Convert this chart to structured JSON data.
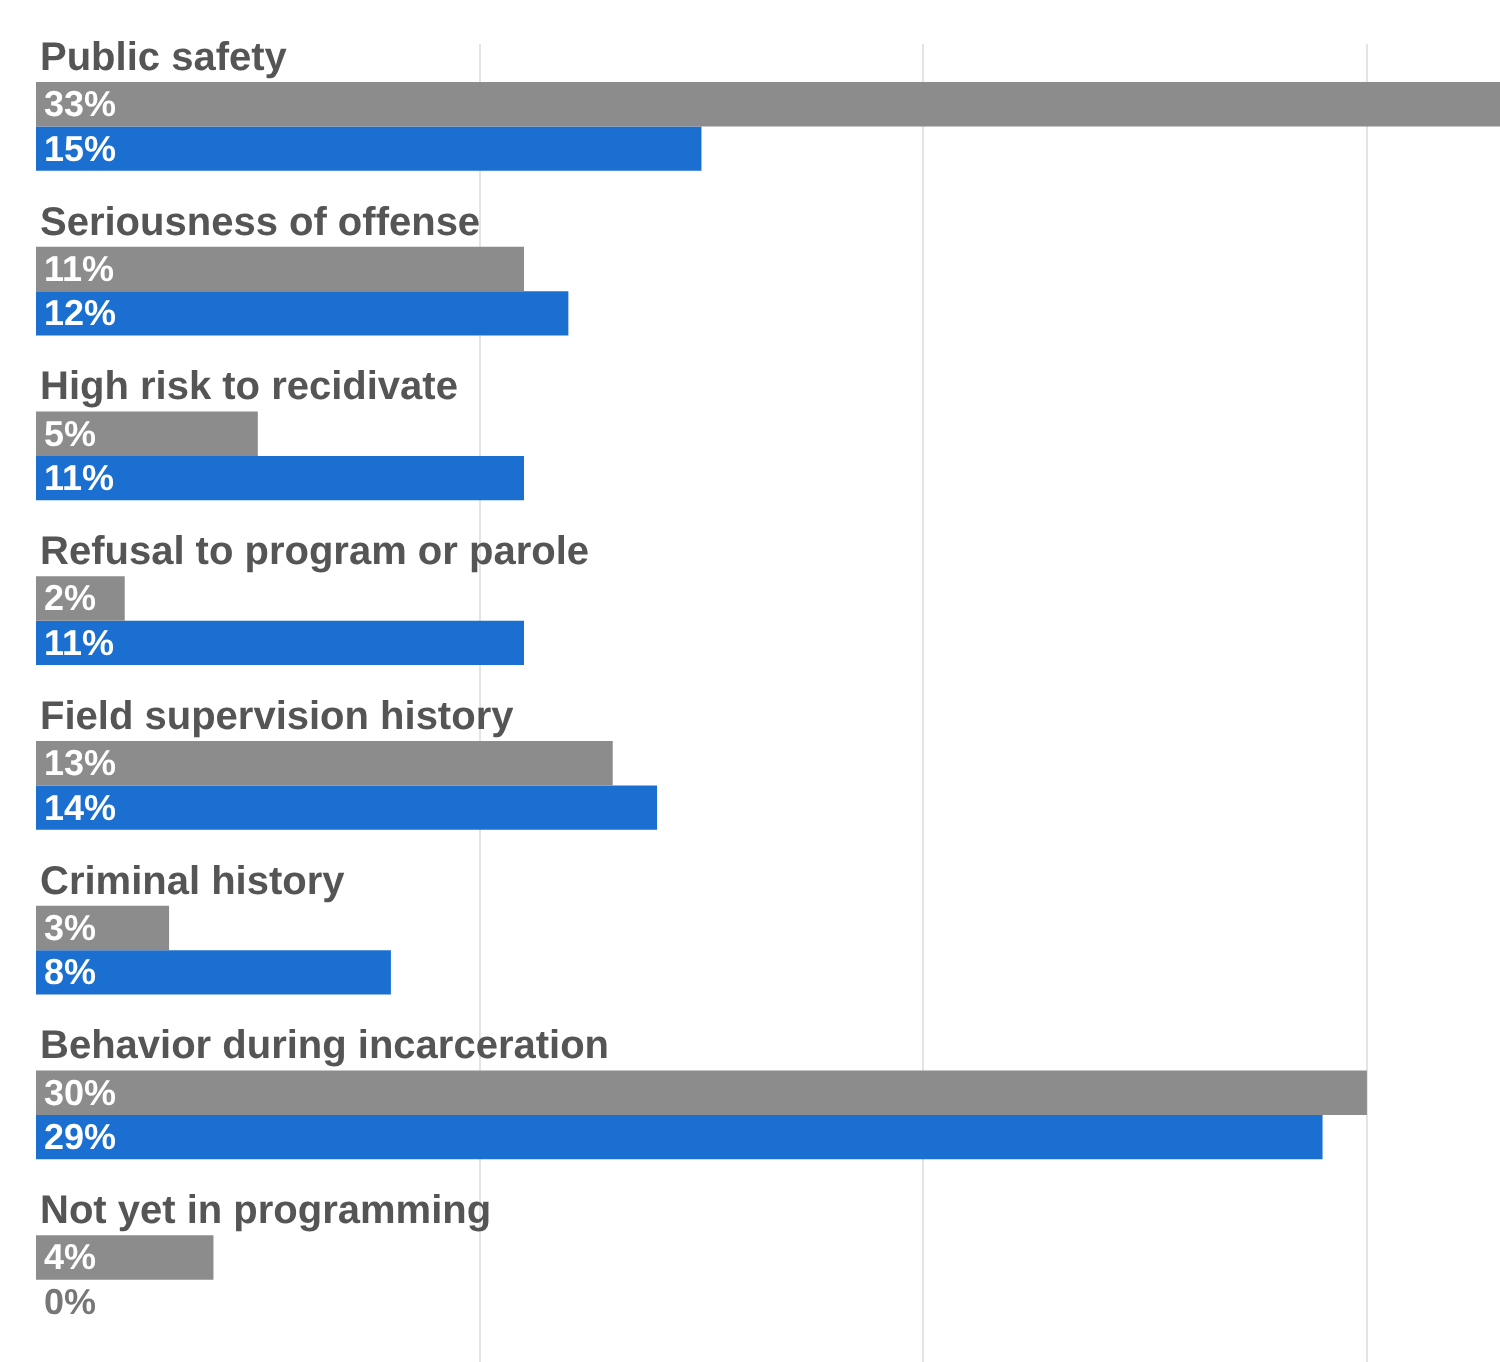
{
  "chart_data": {
    "type": "bar",
    "orientation": "horizontal",
    "categories": [
      "Public safety",
      "Seriousness of offense",
      "High risk to recidivate",
      "Refusal to program or parole",
      "Field supervision history",
      "Criminal history",
      "Behavior during incarceration",
      "Not yet in programming"
    ],
    "series": [
      {
        "color": "#8c8c8c",
        "values": [
          33,
          11,
          5,
          2,
          13,
          3,
          30,
          4
        ],
        "value_labels": [
          "33%",
          "11%",
          "5%",
          "2%",
          "13%",
          "3%",
          "30%",
          "4%"
        ]
      },
      {
        "color": "#1a6fd0",
        "values": [
          15,
          12,
          11,
          11,
          14,
          8,
          29,
          0
        ],
        "value_labels": [
          "15%",
          "12%",
          "11%",
          "11%",
          "14%",
          "8%",
          "29%",
          "0%"
        ]
      }
    ],
    "xlim": [
      0,
      33
    ],
    "xticks": [
      {
        "value": 10,
        "label": null
      },
      {
        "value": 20,
        "label": null
      },
      {
        "value": 30,
        "label": null
      }
    ],
    "grid": "x",
    "tick_labels": false
  }
}
